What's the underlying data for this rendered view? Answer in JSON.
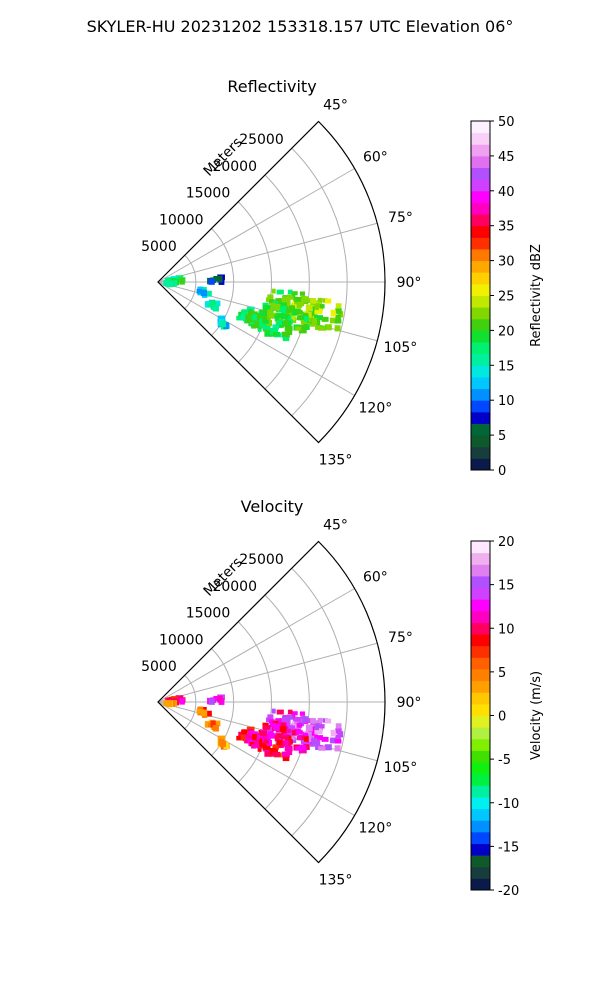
{
  "figure_title": "SKYLER-HU  20231202  153318.157 UTC Elevation 06°",
  "chart_data": [
    {
      "type": "polar-sector",
      "title": "Reflectivity",
      "radial_label": "Meters",
      "radial_ticks": [
        5000,
        10000,
        15000,
        20000,
        25000
      ],
      "radial_max": 30000,
      "angle_ticks": [
        "45°",
        "60°",
        "75°",
        "90°",
        "105°",
        "120°",
        "135°"
      ],
      "angle_range_deg": [
        45,
        135
      ],
      "colorbar": {
        "label": "Reflectivity dBZ",
        "min": 0,
        "max": 50,
        "ticks": [
          0,
          5,
          10,
          15,
          20,
          25,
          30,
          35,
          40,
          45,
          50
        ],
        "colors": [
          "#0a1a4a",
          "#173d3d",
          "#0f5a2c",
          "#006837",
          "#0000c8",
          "#0048ff",
          "#0090ff",
          "#00c8ff",
          "#00e8e0",
          "#00f0a0",
          "#00f070",
          "#10e030",
          "#40d010",
          "#80d800",
          "#c0e800",
          "#f0f000",
          "#ffd000",
          "#ffa800",
          "#ff7800",
          "#ff3000",
          "#ff0000",
          "#ff0060",
          "#ff00c0",
          "#ff00ff",
          "#d040ff",
          "#b050ff",
          "#e070f0",
          "#f0a0f0",
          "#f8d0f8",
          "#fdf0ff"
        ]
      },
      "echoes": [
        {
          "angle_deg": 78,
          "range_m": 2000,
          "value": 17
        },
        {
          "angle_deg": 85,
          "range_m": 2500,
          "value": 18
        },
        {
          "angle_deg": 92,
          "range_m": 1500,
          "value": 16
        },
        {
          "angle_deg": 86,
          "range_m": 7500,
          "value": 8
        },
        {
          "angle_deg": 101,
          "range_m": 6000,
          "value": 14
        },
        {
          "angle_deg": 112,
          "range_m": 7500,
          "value": 15
        },
        {
          "angle_deg": 122,
          "range_m": 10000,
          "value": 13
        },
        {
          "angle_deg": 99,
          "range_m": 18000,
          "value": 21
        },
        {
          "angle_deg": 101,
          "range_m": 21000,
          "value": 22
        },
        {
          "angle_deg": 104,
          "range_m": 17000,
          "value": 20
        },
        {
          "angle_deg": 110,
          "range_m": 15000,
          "value": 19
        }
      ]
    },
    {
      "type": "polar-sector",
      "title": "Velocity",
      "radial_label": "Meters",
      "radial_ticks": [
        5000,
        10000,
        15000,
        20000,
        25000
      ],
      "radial_max": 30000,
      "angle_ticks": [
        "45°",
        "60°",
        "75°",
        "90°",
        "105°",
        "120°",
        "135°"
      ],
      "angle_range_deg": [
        45,
        135
      ],
      "colorbar": {
        "label": "Velocity (m/s)",
        "min": -20,
        "max": 20,
        "ticks": [
          -20,
          -15,
          -10,
          -5,
          0,
          5,
          10,
          15,
          20
        ],
        "colors": [
          "#0a1a4a",
          "#173d3d",
          "#0f5a2c",
          "#0000c8",
          "#0048ff",
          "#0090ff",
          "#00c8ff",
          "#00f0f0",
          "#00f0a0",
          "#00f040",
          "#10f010",
          "#40e000",
          "#80f000",
          "#b0f040",
          "#e0f020",
          "#ffe000",
          "#ffc800",
          "#ffa000",
          "#ff8000",
          "#ff6000",
          "#ff3000",
          "#ff0000",
          "#ff0060",
          "#ff00c0",
          "#ff00ff",
          "#d040ff",
          "#b050ff",
          "#e080f0",
          "#f0b0f0",
          "#fde8ff"
        ]
      },
      "echoes": [
        {
          "angle_deg": 78,
          "range_m": 2000,
          "value": 10
        },
        {
          "angle_deg": 85,
          "range_m": 2500,
          "value": 9
        },
        {
          "angle_deg": 92,
          "range_m": 1500,
          "value": 3
        },
        {
          "angle_deg": 86,
          "range_m": 7500,
          "value": 14
        },
        {
          "angle_deg": 101,
          "range_m": 6000,
          "value": 6
        },
        {
          "angle_deg": 112,
          "range_m": 7500,
          "value": 4
        },
        {
          "angle_deg": 122,
          "range_m": 10000,
          "value": 3
        },
        {
          "angle_deg": 99,
          "range_m": 18000,
          "value": 13
        },
        {
          "angle_deg": 101,
          "range_m": 21000,
          "value": 15
        },
        {
          "angle_deg": 104,
          "range_m": 17000,
          "value": 11
        },
        {
          "angle_deg": 110,
          "range_m": 15000,
          "value": 10
        }
      ]
    }
  ]
}
